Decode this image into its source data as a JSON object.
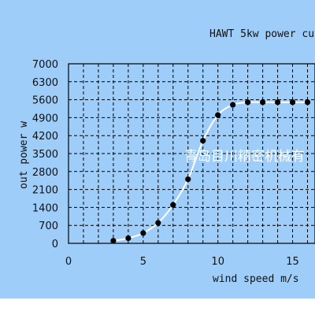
{
  "chart_data": {
    "type": "line",
    "title": "HAWT 5kw power cu",
    "xlabel": "wind speed m/s",
    "ylabel": "out power w",
    "xlim": [
      0,
      16.5
    ],
    "ylim": [
      0,
      7000
    ],
    "x_ticks": [
      0,
      5,
      10,
      15
    ],
    "y_ticks": [
      0,
      700,
      1400,
      2100,
      2800,
      3500,
      4200,
      4900,
      5600,
      6300,
      7000
    ],
    "grid": true,
    "colors": {
      "background": "#9fcdf9",
      "plot": "#9fcdf9",
      "curve": "#ffffff",
      "marker": "#000000"
    },
    "series": [
      {
        "points": [
          [
            3,
            100
          ],
          [
            4,
            200
          ],
          [
            5,
            400
          ],
          [
            6,
            800
          ],
          [
            7,
            1500
          ],
          [
            8,
            2500
          ],
          [
            9,
            4000
          ],
          [
            10,
            5000
          ],
          [
            11,
            5400
          ],
          [
            12,
            5500
          ],
          [
            13,
            5500
          ],
          [
            14,
            5500
          ],
          [
            15,
            5500
          ],
          [
            16,
            5500
          ]
        ]
      }
    ],
    "watermark": "青岛目川精密机械有"
  }
}
